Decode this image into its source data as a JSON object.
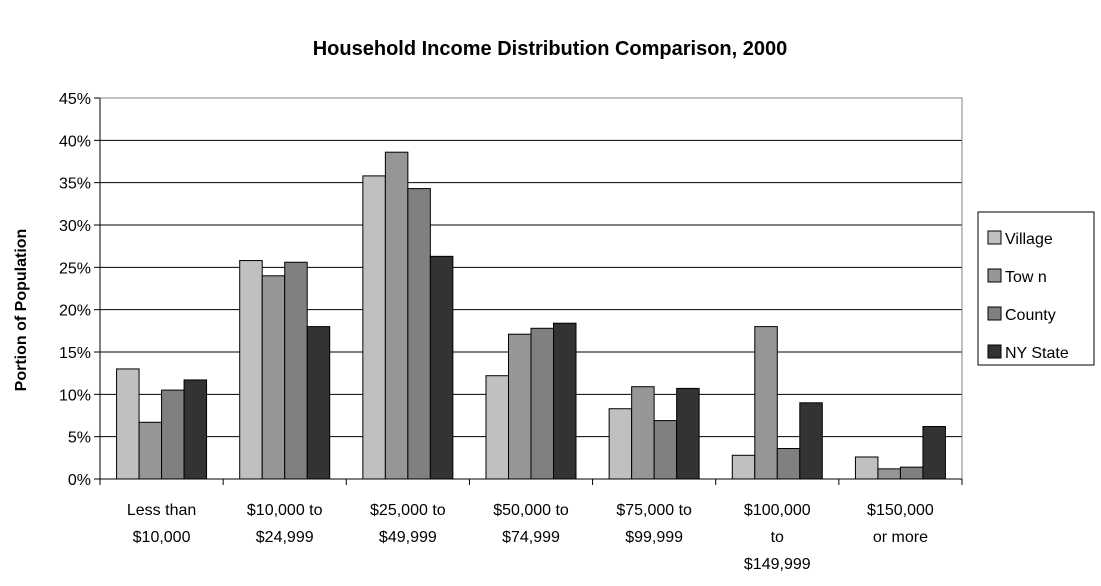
{
  "chart_data": {
    "type": "bar",
    "title": "Household Income Distribution Comparison, 2000",
    "xlabel": "",
    "ylabel": "Portion of Population",
    "ylim": [
      0,
      45
    ],
    "y_ticks": [
      "0%",
      "5%",
      "10%",
      "15%",
      "20%",
      "25%",
      "30%",
      "35%",
      "40%",
      "45%"
    ],
    "grid": true,
    "legend_position": "right",
    "categories": [
      [
        "Less than",
        "$10,000"
      ],
      [
        "$10,000 to",
        "$24,999"
      ],
      [
        "$25,000 to",
        "$49,999"
      ],
      [
        "$50,000 to",
        "$74,999"
      ],
      [
        "$75,000 to",
        "$99,999"
      ],
      [
        "$100,000",
        "to",
        "$149,999"
      ],
      [
        "$150,000",
        "or more"
      ]
    ],
    "series": [
      {
        "name": "Village",
        "color": "#c0c0c0",
        "values": [
          13.0,
          25.8,
          35.8,
          12.2,
          8.3,
          2.8,
          2.6
        ]
      },
      {
        "name": "Tow n",
        "color": "#969696",
        "values": [
          6.7,
          24.0,
          38.6,
          17.1,
          10.9,
          18.0,
          1.2
        ]
      },
      {
        "name": "County",
        "color": "#808080",
        "values": [
          10.5,
          25.6,
          34.3,
          17.8,
          6.9,
          3.6,
          1.4
        ]
      },
      {
        "name": "NY State",
        "color": "#333333",
        "values": [
          11.7,
          18.0,
          26.3,
          18.4,
          10.7,
          9.0,
          6.2
        ]
      }
    ]
  }
}
